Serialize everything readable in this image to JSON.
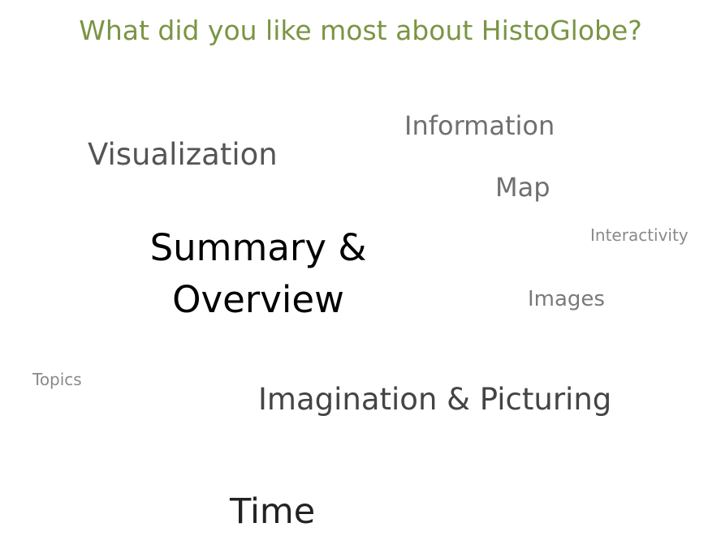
{
  "title": "What did you like most about HistoGlobe?",
  "words": {
    "visualization": "Visualization",
    "information": "Information",
    "map": "Map",
    "interactivity": "Interactivity",
    "summary_line1": "Summary &",
    "summary_line2": "Overview",
    "images": "Images",
    "topics": "Topics",
    "imagination": "Imagination & Picturing",
    "time": "Time"
  }
}
